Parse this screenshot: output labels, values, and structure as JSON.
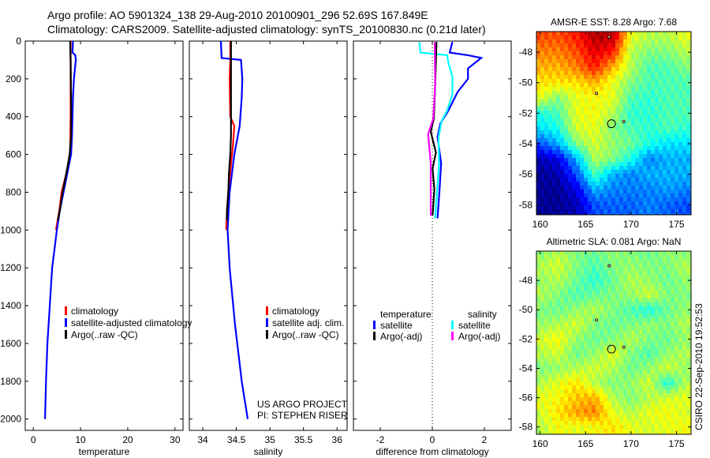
{
  "title_line1": "Argo profile: AO 5901324_138 29-Aug-2010 20100901_296 52.69S 167.849E",
  "title_line2": "Climatology: CARS2009. Satellite-adjusted climatology: synTS_20100830.nc (0.21d later)",
  "side_stamp": "CSIRO 22-Sep-2010 19:52:53",
  "colors": {
    "climatology": "#ff0000",
    "satellite": "#0000ff",
    "argo": "#000000",
    "sal_satellite": "#00ffff",
    "sal_argo": "#ff00ff"
  },
  "chart_data": [
    {
      "type": "line",
      "id": "temp",
      "xlabel": "temperature",
      "ylabel": "",
      "xlim": [
        -1.7,
        31.7
      ],
      "ylim": [
        0,
        2060
      ],
      "y_reversed": true,
      "xticks": [
        0,
        10,
        20,
        30
      ],
      "xtick_labels": [
        "0",
        "10",
        "20",
        "30"
      ],
      "yticks": [
        0,
        200,
        400,
        600,
        800,
        1000,
        1200,
        1400,
        1600,
        1800,
        2000
      ],
      "ytick_labels": [
        "0",
        "200",
        "400",
        "600",
        "800",
        "1000",
        "1200",
        "1400",
        "1600",
        "1800",
        "2000"
      ],
      "legend": [
        "climatology",
        "satellite-adjusted climatology",
        "Argo(..raw -QC)"
      ],
      "series": [
        {
          "name": "climatology",
          "color": "#ff0000",
          "depth": [
            0,
            100,
            200,
            400,
            600,
            700,
            800,
            900,
            1000
          ],
          "x": [
            7.9,
            7.9,
            7.9,
            7.9,
            7.8,
            7.0,
            6.0,
            5.5,
            4.8
          ]
        },
        {
          "name": "satellite",
          "color": "#0000ff",
          "depth": [
            0,
            60,
            75,
            100,
            150,
            200,
            300,
            400,
            500,
            600,
            700,
            800,
            900,
            1000,
            1200,
            1400,
            1600,
            1800,
            2000
          ],
          "x": [
            8.4,
            8.3,
            8.9,
            9.0,
            8.8,
            8.6,
            8.4,
            8.3,
            8.2,
            8.0,
            7.2,
            6.4,
            5.6,
            5.0,
            4.0,
            3.5,
            3.0,
            2.7,
            2.5
          ]
        },
        {
          "name": "argo",
          "color": "#000000",
          "depth": [
            0,
            100,
            300,
            500,
            600,
            700,
            800,
            900,
            950
          ],
          "x": [
            7.8,
            7.9,
            8.0,
            8.0,
            7.7,
            7.0,
            6.2,
            5.6,
            5.2
          ]
        }
      ]
    },
    {
      "type": "line",
      "id": "sal",
      "xlabel": "salinity",
      "xlim": [
        33.8,
        36.15
      ],
      "ylim": [
        0,
        2060
      ],
      "y_reversed": true,
      "xticks": [
        34,
        34.5,
        35,
        35.5,
        36
      ],
      "xtick_labels": [
        "34",
        "34.5",
        "35",
        "35.5",
        "36"
      ],
      "yticks": [
        0,
        200,
        400,
        600,
        800,
        1000,
        1200,
        1400,
        1600,
        1800,
        2000
      ],
      "legend": [
        "climatology",
        "satellite adj. clim.",
        "Argo(..raw -QC)"
      ],
      "annotation": [
        "US ARGO PROJECT",
        "PI: STEPHEN RISER"
      ],
      "series": [
        {
          "name": "climatology",
          "color": "#ff0000",
          "depth": [
            0,
            100,
            200,
            400,
            450,
            550,
            650,
            800,
            900,
            1000
          ],
          "x": [
            34.41,
            34.41,
            34.4,
            34.41,
            34.47,
            34.45,
            34.42,
            34.38,
            34.36,
            34.35
          ]
        },
        {
          "name": "satellite",
          "color": "#0000ff",
          "depth": [
            0,
            90,
            100,
            200,
            300,
            450,
            600,
            800,
            1000,
            1200,
            1500,
            1800,
            2000
          ],
          "x": [
            34.27,
            34.28,
            34.57,
            34.59,
            34.58,
            34.55,
            34.47,
            34.4,
            34.37,
            34.4,
            34.48,
            34.58,
            34.67
          ]
        },
        {
          "name": "argo",
          "color": "#000000",
          "depth": [
            0,
            200,
            400,
            500,
            600,
            700,
            800,
            900,
            950
          ],
          "x": [
            34.42,
            34.42,
            34.42,
            34.42,
            34.41,
            34.39,
            34.38,
            34.36,
            34.36
          ]
        }
      ]
    },
    {
      "type": "line",
      "id": "diff",
      "xlabel": "difference from climatology",
      "xlim": [
        -3.03,
        3.03
      ],
      "ylim": [
        0,
        2060
      ],
      "y_reversed": true,
      "xticks": [
        -2,
        0,
        2
      ],
      "xtick_labels": [
        "-2",
        "0",
        "2"
      ],
      "yticks": [
        0,
        200,
        400,
        600,
        800,
        1000,
        1200,
        1400,
        1600,
        1800,
        2000
      ],
      "legend_groups": [
        {
          "heading": "temperature",
          "items": [
            "satellite",
            "Argo(-adj)"
          ]
        },
        {
          "heading": "salinity",
          "items": [
            "satellite",
            "Argo(-adj)"
          ]
        }
      ],
      "series": [
        {
          "name": "temperature satellite",
          "color": "#0000ff",
          "depth": [
            5,
            61,
            75,
            89,
            145,
            200,
            270,
            367,
            437,
            507,
            646,
            785,
            938
          ],
          "x": [
            0.77,
            0.67,
            1.37,
            1.88,
            1.37,
            1.37,
            0.97,
            0.62,
            0.31,
            0.2,
            0.34,
            0.28,
            0.2
          ]
        },
        {
          "name": "salinity satellite",
          "color": "#00ffff",
          "depth": [
            5,
            61,
            75,
            117,
            187,
            284,
            367,
            423,
            507,
            646,
            785,
            938
          ],
          "x": [
            -0.5,
            -0.45,
            0.57,
            0.62,
            0.77,
            0.77,
            0.57,
            0.36,
            0.24,
            0.26,
            0.19,
            0.11
          ]
        },
        {
          "name": "temperature argo",
          "color": "#000000",
          "depth": [
            5,
            228,
            409,
            479,
            590,
            674,
            785,
            924
          ],
          "x": [
            0.16,
            0.11,
            0.06,
            -0.06,
            0.14,
            0.01,
            0.08,
            0.01
          ]
        },
        {
          "name": "salinity argo",
          "color": "#ff00ff",
          "depth": [
            5,
            228,
            409,
            493,
            646,
            924
          ],
          "x": [
            0.09,
            0.11,
            0.04,
            -0.16,
            -0.06,
            -0.06
          ]
        }
      ]
    },
    {
      "type": "heatmap",
      "id": "sst",
      "title": "AMSR-E SST: 8.28 Argo: 7.68",
      "xlim": [
        159.6,
        176.6
      ],
      "ylim": [
        -58.66,
        -46.65
      ],
      "xticks": [
        160,
        165,
        170,
        175
      ],
      "yticks": [
        -48,
        -50,
        -52,
        -54,
        -56,
        -58
      ],
      "xtick_labels": [
        "160",
        "165",
        "170",
        "175"
      ],
      "ytick_labels": [
        "-48",
        "-50",
        "-52",
        "-54",
        "-56",
        "-58"
      ],
      "grid_lons": [
        160,
        162,
        164,
        166,
        168,
        170,
        172,
        174,
        176
      ],
      "grid_lats": [
        -47,
        -48,
        -49,
        -50,
        -51,
        -52,
        -53,
        -54,
        -55,
        -56,
        -57,
        -58
      ],
      "values": [
        [
          0.8,
          0.8,
          0.85,
          0.95,
          0.95,
          0.6,
          0.55,
          0.55,
          0.6
        ],
        [
          0.75,
          0.75,
          0.8,
          0.9,
          0.85,
          0.55,
          0.5,
          0.5,
          0.55
        ],
        [
          0.7,
          0.7,
          0.75,
          0.85,
          0.7,
          0.55,
          0.45,
          0.45,
          0.5
        ],
        [
          0.65,
          0.65,
          0.65,
          0.7,
          0.6,
          0.5,
          0.45,
          0.45,
          0.45
        ],
        [
          0.6,
          0.5,
          0.6,
          0.62,
          0.6,
          0.45,
          0.42,
          0.45,
          0.45
        ],
        [
          0.4,
          0.45,
          0.6,
          0.62,
          0.55,
          0.42,
          0.42,
          0.45,
          0.45
        ],
        [
          0.35,
          0.4,
          0.58,
          0.6,
          0.5,
          0.45,
          0.42,
          0.45,
          0.42
        ],
        [
          0.2,
          0.3,
          0.5,
          0.58,
          0.52,
          0.48,
          0.4,
          0.35,
          0.35
        ],
        [
          0.05,
          0.1,
          0.3,
          0.55,
          0.5,
          0.4,
          0.25,
          0.3,
          0.3
        ],
        [
          0.02,
          0.05,
          0.2,
          0.45,
          0.3,
          0.25,
          0.3,
          0.3,
          0.3
        ],
        [
          0.02,
          0.02,
          0.1,
          0.3,
          0.25,
          0.25,
          0.25,
          0.28,
          0.25
        ],
        [
          0.02,
          0.02,
          0.05,
          0.2,
          0.22,
          0.22,
          0.25,
          0.22,
          0.2
        ]
      ],
      "profile_location": [
        167.849,
        -52.69
      ]
    },
    {
      "type": "heatmap",
      "id": "sla",
      "title": "Altimetric SLA: 0.081 Argo: NaN",
      "xlim": [
        159.6,
        176.6
      ],
      "ylim": [
        -58.5,
        -46.0
      ],
      "xticks": [
        160,
        165,
        170,
        175
      ],
      "yticks": [
        -48,
        -50,
        -52,
        -54,
        -56,
        -58
      ],
      "xtick_labels": [
        "160",
        "165",
        "170",
        "175"
      ],
      "ytick_labels": [
        "-48",
        "-50",
        "-52",
        "-54",
        "-56",
        "-58"
      ],
      "grid_lons": [
        160,
        162,
        164,
        166,
        168,
        170,
        172,
        174,
        176
      ],
      "grid_lats": [
        -46,
        -47,
        -48,
        -49,
        -50,
        -51,
        -52,
        -53,
        -54,
        -55,
        -56,
        -57,
        -58
      ],
      "values": [
        [
          0.5,
          0.55,
          0.5,
          0.48,
          0.52,
          0.5,
          0.48,
          0.52,
          0.5
        ],
        [
          0.55,
          0.58,
          0.5,
          0.45,
          0.5,
          0.52,
          0.5,
          0.5,
          0.55
        ],
        [
          0.52,
          0.55,
          0.48,
          0.42,
          0.48,
          0.55,
          0.52,
          0.48,
          0.52
        ],
        [
          0.55,
          0.5,
          0.45,
          0.48,
          0.5,
          0.52,
          0.58,
          0.5,
          0.5
        ],
        [
          0.5,
          0.48,
          0.52,
          0.55,
          0.5,
          0.45,
          0.4,
          0.48,
          0.52
        ],
        [
          0.52,
          0.55,
          0.58,
          0.5,
          0.48,
          0.5,
          0.52,
          0.5,
          0.55
        ],
        [
          0.58,
          0.62,
          0.52,
          0.48,
          0.5,
          0.55,
          0.5,
          0.48,
          0.52
        ],
        [
          0.55,
          0.58,
          0.48,
          0.52,
          0.6,
          0.5,
          0.45,
          0.52,
          0.55
        ],
        [
          0.5,
          0.52,
          0.55,
          0.58,
          0.55,
          0.48,
          0.52,
          0.58,
          0.52
        ],
        [
          0.55,
          0.6,
          0.65,
          0.55,
          0.5,
          0.52,
          0.58,
          0.4,
          0.55
        ],
        [
          0.6,
          0.62,
          0.68,
          0.7,
          0.55,
          0.5,
          0.55,
          0.58,
          0.6
        ],
        [
          0.58,
          0.65,
          0.72,
          0.75,
          0.6,
          0.55,
          0.6,
          0.62,
          0.58
        ],
        [
          0.55,
          0.62,
          0.6,
          0.62,
          0.65,
          0.6,
          0.58,
          0.6,
          0.62
        ]
      ],
      "profile_location": [
        167.849,
        -52.69
      ]
    }
  ]
}
